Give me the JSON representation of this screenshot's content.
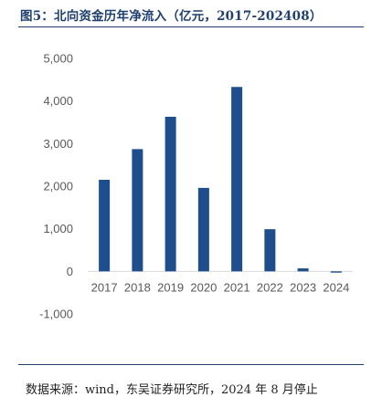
{
  "figure": {
    "title": "图5：北向资金历年净流入（亿元，2017-202408）",
    "source": "数据来源：wind，东吴证券研究所，2024 年 8 月停止"
  },
  "chart_data": {
    "type": "bar",
    "title": "图5：北向资金历年净流入（亿元，2017-202408）",
    "xlabel": "",
    "ylabel": "",
    "categories": [
      "2017",
      "2018",
      "2019",
      "2020",
      "2021",
      "2022",
      "2023",
      "2024"
    ],
    "values": [
      2150,
      2870,
      3630,
      1960,
      4330,
      990,
      70,
      -30
    ],
    "ylim": [
      -1000,
      5000
    ],
    "yticks": [
      -1000,
      0,
      1000,
      2000,
      3000,
      4000,
      5000
    ],
    "ytick_labels": [
      "-1,000",
      "0",
      "1,000",
      "2,000",
      "3,000",
      "4,000",
      "5,000"
    ],
    "grid": false,
    "legend": "none",
    "colors": {
      "bar": "#1f4e8c",
      "axis": "#d9d9d9",
      "text": "#595959",
      "title": "#1f3f6e"
    }
  }
}
